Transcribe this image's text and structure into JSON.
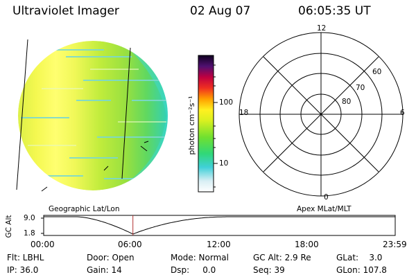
{
  "header": {
    "instrument": "Ultraviolet Imager",
    "date": "02 Aug 07",
    "time": "06:05:35 UT"
  },
  "colorbar": {
    "unit_label": "photon cm⁻²s⁻¹",
    "ticks": [
      "100",
      "10"
    ]
  },
  "polar_plot": {
    "mlt_labels": {
      "top": "12",
      "right": "6",
      "bottom": "0",
      "left": "18"
    },
    "lat_labels": [
      "60",
      "70",
      "80"
    ]
  },
  "timeline": {
    "y_label": "GC Alt",
    "y_ticks": [
      "9.0",
      "1.8"
    ],
    "left_title": "Geographic Lat/Lon",
    "right_title": "Apex MLat/MLT",
    "x_ticks": [
      "00:00",
      "06:00",
      "12:00",
      "18:00",
      "23:59"
    ],
    "current_fraction": 0.2538
  },
  "footer": {
    "flt": "Flt: LBHL",
    "ip": "IP: 36.0",
    "door": "Door: Open",
    "gain": "Gain: 14",
    "mode": "Mode: Normal",
    "dsp": "Dsp:     0.0",
    "gc_alt": "GC Alt: 2.9 Re",
    "seq": "Seq: 39",
    "glat": "GLat:    3.0",
    "glon": "GLon: 107.8"
  },
  "colors": {
    "disk_core": "#ffff66",
    "disk_mid": "#c8f03c",
    "disk_edge": "#3cd8b0",
    "marker": "#b03030"
  }
}
